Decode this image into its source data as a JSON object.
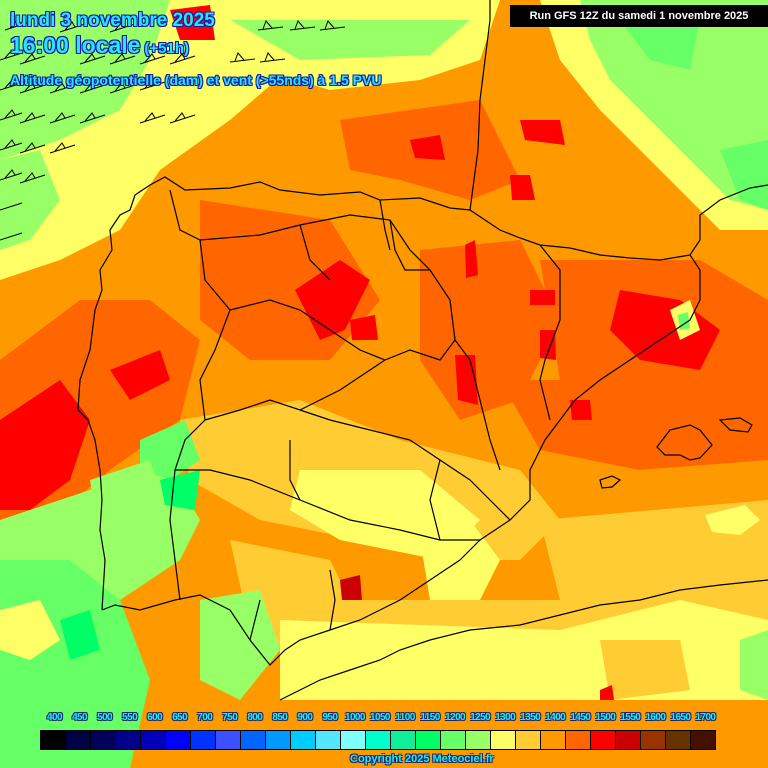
{
  "header": {
    "date": "lundi 3 novembre 2025",
    "time": "16:00 locale",
    "lead": "(+51h)",
    "subtitle": "Altitude géopotentielle (dam) et vent (>55nds) à 1.5 PVU",
    "run": "Run GFS 12Z du samedi 1 novembre 2025"
  },
  "legend": {
    "labels": [
      "400",
      "450",
      "500",
      "550",
      "600",
      "650",
      "700",
      "750",
      "800",
      "850",
      "900",
      "950",
      "1000",
      "1050",
      "1100",
      "1150",
      "1200",
      "1250",
      "1300",
      "1350",
      "1400",
      "1450",
      "1500",
      "1550",
      "1600",
      "1650",
      "1700"
    ],
    "colors": [
      "#000000",
      "#000044",
      "#00005c",
      "#000088",
      "#0000b8",
      "#0000ff",
      "#0033ff",
      "#3d50ff",
      "#0066ff",
      "#0099ff",
      "#00ccff",
      "#55e6ff",
      "#80ffff",
      "#00ffcc",
      "#11ee99",
      "#00ff66",
      "#66ff66",
      "#99ff66",
      "#ffff66",
      "#ffcc33",
      "#ff9900",
      "#ff6600",
      "#ff0000",
      "#cc0000",
      "#993300",
      "#663300",
      "#441100"
    ],
    "unit": "dam"
  },
  "map": {
    "region": "Péninsule Ibérique",
    "wind_barb_direction": "ENE",
    "wind_threshold": ">55nds",
    "level": "1.5 PVU"
  },
  "footer": {
    "copyright": "Copyright 2025 Meteociel.fr"
  }
}
